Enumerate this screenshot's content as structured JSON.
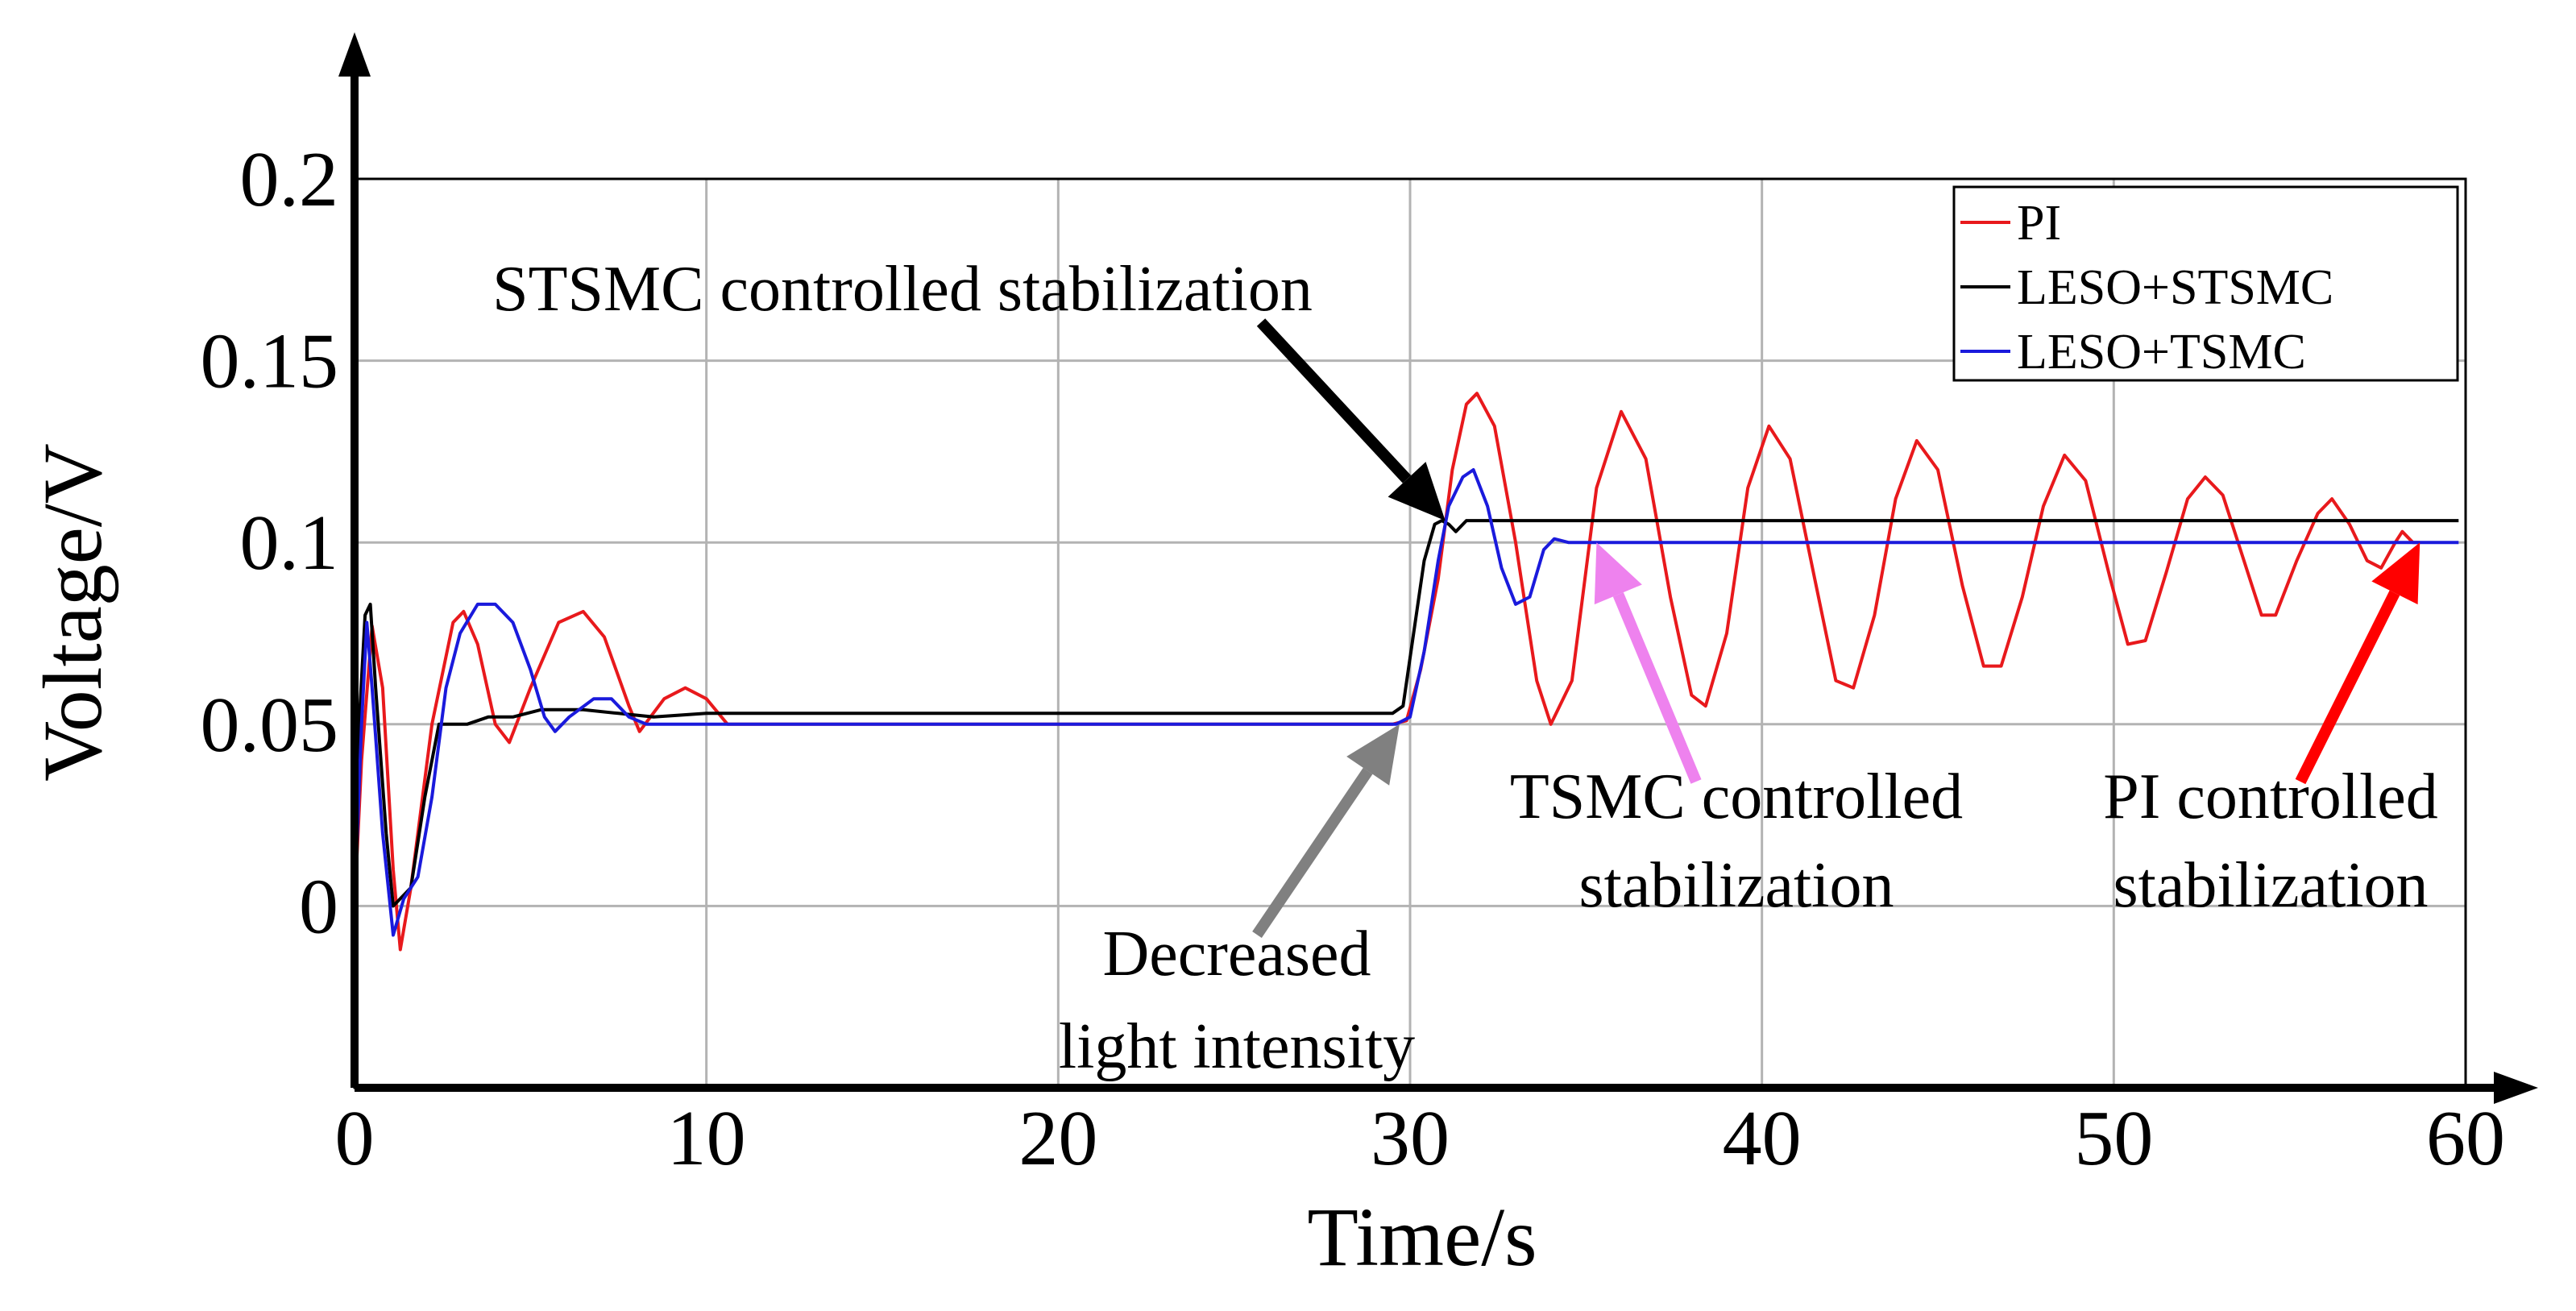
{
  "chart_data": {
    "type": "line",
    "title": "",
    "xlabel": "Time/s",
    "ylabel": "Voltage/V",
    "xlim": [
      0,
      60
    ],
    "ylim": [
      -0.05,
      0.2
    ],
    "x_ticks": [
      0,
      10,
      20,
      30,
      40,
      50,
      60
    ],
    "x_tick_labels": [
      "0",
      "10",
      "20",
      "30",
      "40",
      "50",
      "60"
    ],
    "y_ticks": [
      0,
      0.05,
      0.1,
      0.15,
      0.2
    ],
    "y_tick_labels": [
      "0",
      "0.05",
      "0.1",
      "0.15",
      "0.2"
    ],
    "grid": true,
    "legend_position": "top-right",
    "series": [
      {
        "name": "PI",
        "color": "#e8191c",
        "points": [
          [
            0,
            0
          ],
          [
            0.2,
            0.04
          ],
          [
            0.5,
            0.077
          ],
          [
            0.8,
            0.06
          ],
          [
            1.1,
            0.01
          ],
          [
            1.3,
            -0.012
          ],
          [
            1.6,
            0.005
          ],
          [
            2.2,
            0.05
          ],
          [
            2.8,
            0.078
          ],
          [
            3.1,
            0.081
          ],
          [
            3.5,
            0.072
          ],
          [
            4.0,
            0.05
          ],
          [
            4.4,
            0.045
          ],
          [
            5.0,
            0.06
          ],
          [
            5.8,
            0.078
          ],
          [
            6.5,
            0.081
          ],
          [
            7.1,
            0.074
          ],
          [
            7.8,
            0.055
          ],
          [
            8.1,
            0.048
          ],
          [
            8.8,
            0.057
          ],
          [
            9.4,
            0.06
          ],
          [
            10.0,
            0.057
          ],
          [
            10.6,
            0.05
          ],
          [
            29.5,
            0.05
          ],
          [
            29.9,
            0.051
          ],
          [
            30.3,
            0.065
          ],
          [
            30.8,
            0.09
          ],
          [
            31.2,
            0.12
          ],
          [
            31.6,
            0.138
          ],
          [
            31.9,
            0.141
          ],
          [
            32.4,
            0.132
          ],
          [
            33.0,
            0.1
          ],
          [
            33.6,
            0.062
          ],
          [
            34.0,
            0.05
          ],
          [
            34.6,
            0.062
          ],
          [
            35.3,
            0.115
          ],
          [
            36.0,
            0.136
          ],
          [
            36.7,
            0.123
          ],
          [
            37.4,
            0.085
          ],
          [
            38.0,
            0.058
          ],
          [
            38.4,
            0.055
          ],
          [
            39.0,
            0.075
          ],
          [
            39.6,
            0.115
          ],
          [
            40.2,
            0.132
          ],
          [
            40.8,
            0.123
          ],
          [
            41.5,
            0.09
          ],
          [
            42.1,
            0.062
          ],
          [
            42.6,
            0.06
          ],
          [
            43.2,
            0.08
          ],
          [
            43.8,
            0.112
          ],
          [
            44.4,
            0.128
          ],
          [
            45.0,
            0.12
          ],
          [
            45.7,
            0.088
          ],
          [
            46.3,
            0.066
          ],
          [
            46.8,
            0.066
          ],
          [
            47.4,
            0.085
          ],
          [
            48.0,
            0.11
          ],
          [
            48.6,
            0.124
          ],
          [
            49.2,
            0.117
          ],
          [
            49.9,
            0.09
          ],
          [
            50.4,
            0.072
          ],
          [
            50.9,
            0.073
          ],
          [
            51.5,
            0.092
          ],
          [
            52.1,
            0.112
          ],
          [
            52.6,
            0.118
          ],
          [
            53.1,
            0.113
          ],
          [
            53.7,
            0.095
          ],
          [
            54.2,
            0.08
          ],
          [
            54.6,
            0.08
          ],
          [
            55.2,
            0.095
          ],
          [
            55.8,
            0.108
          ],
          [
            56.2,
            0.112
          ],
          [
            56.7,
            0.105
          ],
          [
            57.2,
            0.095
          ],
          [
            57.6,
            0.093
          ],
          [
            58.0,
            0.1
          ],
          [
            58.2,
            0.103
          ],
          [
            58.5,
            0.1
          ],
          [
            58.7,
            0.1
          ]
        ]
      },
      {
        "name": "LESO+STSMC",
        "color": "#000000",
        "points": [
          [
            0,
            0
          ],
          [
            0.1,
            0.045
          ],
          [
            0.3,
            0.08
          ],
          [
            0.45,
            0.083
          ],
          [
            0.6,
            0.06
          ],
          [
            0.9,
            0.02
          ],
          [
            1.1,
            0.0
          ],
          [
            1.6,
            0.005
          ],
          [
            2.0,
            0.03
          ],
          [
            2.4,
            0.05
          ],
          [
            3.2,
            0.05
          ],
          [
            3.8,
            0.052
          ],
          [
            4.5,
            0.052
          ],
          [
            5.3,
            0.054
          ],
          [
            6.5,
            0.054
          ],
          [
            7.5,
            0.053
          ],
          [
            8.5,
            0.052
          ],
          [
            10.0,
            0.053
          ],
          [
            15.0,
            0.053
          ],
          [
            20.0,
            0.053
          ],
          [
            25.0,
            0.053
          ],
          [
            29.0,
            0.053
          ],
          [
            29.5,
            0.053
          ],
          [
            29.8,
            0.055
          ],
          [
            30.1,
            0.075
          ],
          [
            30.4,
            0.095
          ],
          [
            30.7,
            0.105
          ],
          [
            30.9,
            0.106
          ],
          [
            31.1,
            0.105
          ],
          [
            31.3,
            0.103
          ],
          [
            31.6,
            0.106
          ],
          [
            32.5,
            0.106
          ],
          [
            40.0,
            0.106
          ],
          [
            50.0,
            0.106
          ],
          [
            59.8,
            0.106
          ]
        ]
      },
      {
        "name": "LESO+TSMC",
        "color": "#1a1adc",
        "points": [
          [
            0,
            0
          ],
          [
            0.2,
            0.05
          ],
          [
            0.35,
            0.078
          ],
          [
            0.5,
            0.06
          ],
          [
            0.8,
            0.02
          ],
          [
            1.1,
            -0.008
          ],
          [
            1.4,
            0.002
          ],
          [
            1.8,
            0.008
          ],
          [
            2.2,
            0.03
          ],
          [
            2.6,
            0.06
          ],
          [
            3.0,
            0.075
          ],
          [
            3.5,
            0.083
          ],
          [
            4.0,
            0.083
          ],
          [
            4.5,
            0.078
          ],
          [
            5.0,
            0.065
          ],
          [
            5.4,
            0.052
          ],
          [
            5.7,
            0.048
          ],
          [
            6.1,
            0.052
          ],
          [
            6.8,
            0.057
          ],
          [
            7.3,
            0.057
          ],
          [
            7.8,
            0.052
          ],
          [
            8.3,
            0.05
          ],
          [
            10.0,
            0.05
          ],
          [
            20.0,
            0.05
          ],
          [
            29.6,
            0.05
          ],
          [
            30.0,
            0.052
          ],
          [
            30.4,
            0.07
          ],
          [
            30.8,
            0.095
          ],
          [
            31.1,
            0.11
          ],
          [
            31.5,
            0.118
          ],
          [
            31.8,
            0.12
          ],
          [
            32.2,
            0.11
          ],
          [
            32.6,
            0.093
          ],
          [
            33.0,
            0.083
          ],
          [
            33.4,
            0.085
          ],
          [
            33.8,
            0.098
          ],
          [
            34.1,
            0.101
          ],
          [
            34.5,
            0.1
          ],
          [
            34.8,
            0.1
          ],
          [
            40.0,
            0.1
          ],
          [
            50.0,
            0.1
          ],
          [
            58.0,
            0.1
          ],
          [
            59.8,
            0.1
          ]
        ]
      }
    ],
    "annotations": [
      {
        "lines": [
          "STSMC controlled stabilization"
        ],
        "arrow_color": "#000000",
        "arrow_to": [
          31.0,
          0.106
        ]
      },
      {
        "lines": [
          "Decreased",
          "light intensity"
        ],
        "arrow_color": "#808080",
        "arrow_to": [
          29.7,
          0.05
        ]
      },
      {
        "lines": [
          "TSMC controlled",
          "stabilization"
        ],
        "arrow_color": "#ee82ee",
        "arrow_to": [
          35.3,
          0.1
        ]
      },
      {
        "lines": [
          "PI controlled",
          "stabilization"
        ],
        "arrow_color": "#ff0000",
        "arrow_to": [
          58.7,
          0.1
        ]
      }
    ]
  }
}
